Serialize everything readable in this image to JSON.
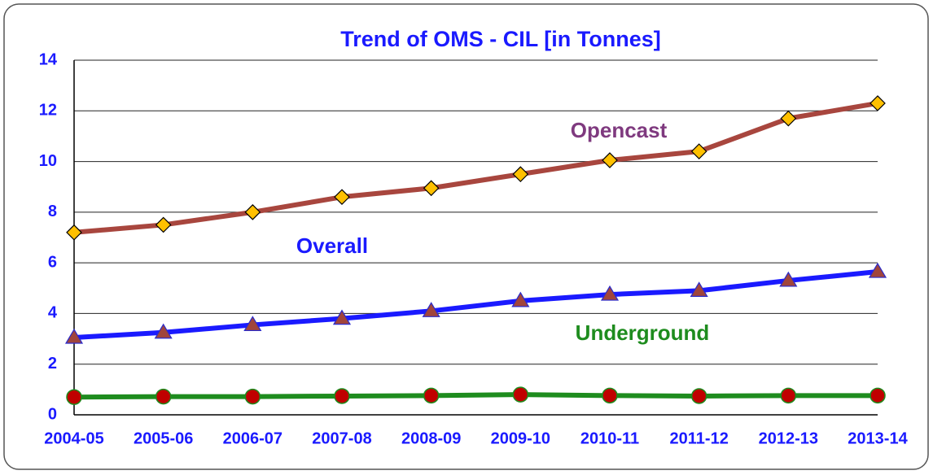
{
  "chart_data": {
    "type": "line",
    "title": "Trend of OMS - CIL [in Tonnes]",
    "categories": [
      "2004-05",
      "2005-06",
      "2006-07",
      "2007-08",
      "2008-09",
      "2009-10",
      "2010-11",
      "2011-12",
      "2012-13",
      "2013-14"
    ],
    "series": [
      {
        "name": "Opencast",
        "color": "#a8463e",
        "label_color": "#7f3a7f",
        "marker": "diamond",
        "marker_fill": "#ffc000",
        "marker_stroke": "#000000",
        "values": [
          7.2,
          7.5,
          8.0,
          8.6,
          8.95,
          9.5,
          10.05,
          10.4,
          11.7,
          12.3
        ]
      },
      {
        "name": "Overall",
        "color": "#1a1aff",
        "label_color": "#1a1aff",
        "marker": "triangle",
        "marker_fill": "#a0453c",
        "marker_stroke": "#2a2acc",
        "values": [
          3.05,
          3.25,
          3.55,
          3.8,
          4.1,
          4.5,
          4.75,
          4.9,
          5.3,
          5.65
        ]
      },
      {
        "name": "Underground",
        "color": "#1e8c1e",
        "label_color": "#1e8c1e",
        "marker": "circle",
        "marker_fill": "#c00000",
        "marker_stroke": "#1e8c1e",
        "values": [
          0.7,
          0.72,
          0.72,
          0.74,
          0.76,
          0.8,
          0.76,
          0.74,
          0.76,
          0.76
        ]
      }
    ],
    "ylim": [
      0,
      14
    ],
    "yticks": [
      0,
      2,
      4,
      6,
      8,
      10,
      12,
      14
    ],
    "grid": true
  }
}
